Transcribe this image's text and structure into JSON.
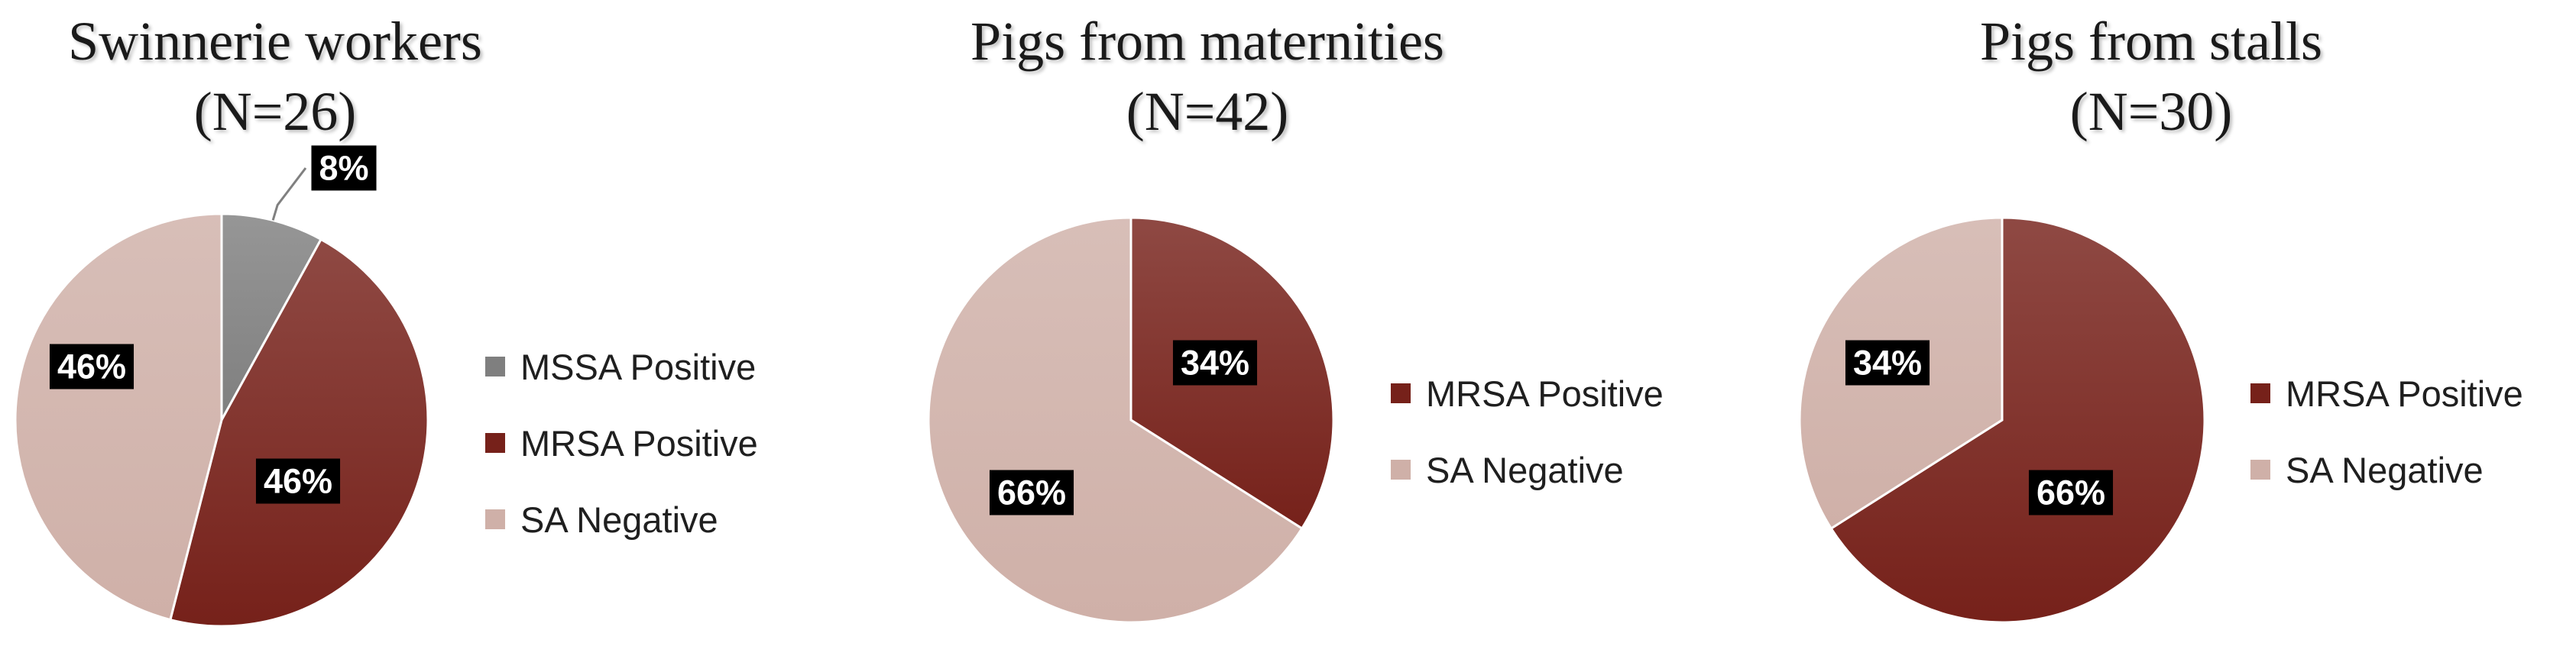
{
  "chart_data": [
    {
      "type": "pie",
      "title_line1": "Swinnerie workers",
      "title_line2": "(N=26)",
      "slices": [
        {
          "name": "MSSA Positive",
          "value": 8,
          "label": "8%",
          "color": "#7f7f7f"
        },
        {
          "name": "MRSA Positive",
          "value": 46,
          "label": "46%",
          "color": "#76211a"
        },
        {
          "name": "SA Negative",
          "value": 46,
          "label": "46%",
          "color": "#cfb0a8"
        }
      ],
      "legend": [
        "MSSA Positive",
        "MRSA Positive",
        "SA Negative"
      ],
      "legend_position": "right"
    },
    {
      "type": "pie",
      "title_line1": "Pigs from maternities",
      "title_line2": "(N=42)",
      "slices": [
        {
          "name": "MRSA Positive",
          "value": 34,
          "label": "34%",
          "color": "#76211a"
        },
        {
          "name": "SA Negative",
          "value": 66,
          "label": "66%",
          "color": "#cfb0a8"
        }
      ],
      "legend": [
        "MRSA Positive",
        "SA Negative"
      ],
      "legend_position": "right"
    },
    {
      "type": "pie",
      "title_line1": "Pigs from stalls",
      "title_line2": "(N=30)",
      "slices": [
        {
          "name": "MRSA Positive",
          "value": 66,
          "label": "66%",
          "color": "#76211a"
        },
        {
          "name": "SA Negative",
          "value": 34,
          "label": "34%",
          "color": "#cfb0a8"
        }
      ],
      "legend": [
        "MRSA Positive",
        "SA Negative"
      ],
      "legend_position": "right"
    }
  ]
}
